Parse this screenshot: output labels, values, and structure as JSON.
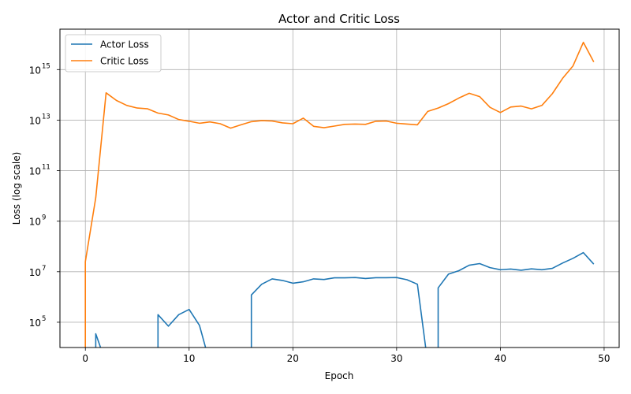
{
  "chart_data": {
    "type": "line",
    "title": "Actor and Critic Loss",
    "xlabel": "Epoch",
    "ylabel": "Loss (log scale)",
    "yscale": "log",
    "xlim": [
      -2.45,
      51.45
    ],
    "ylim_exponent": [
      4.0,
      16.6
    ],
    "grid": true,
    "legend_position": "top-left",
    "x_ticks": [
      0,
      10,
      20,
      30,
      40,
      50
    ],
    "y_ticks": [
      5,
      7,
      9,
      11,
      13,
      15
    ],
    "x_tick_labels": [
      "0",
      "10",
      "20",
      "30",
      "40",
      "50"
    ],
    "y_tick_labels": [
      "10",
      "10",
      "10",
      "10",
      "10",
      "10"
    ],
    "y_tick_exponents": [
      "5",
      "7",
      "9",
      "11",
      "13",
      "15"
    ],
    "x": [
      0,
      1,
      2,
      3,
      4,
      5,
      6,
      7,
      8,
      9,
      10,
      11,
      12,
      13,
      14,
      15,
      16,
      17,
      18,
      19,
      20,
      21,
      22,
      23,
      24,
      25,
      26,
      27,
      28,
      29,
      30,
      31,
      32,
      33,
      34,
      35,
      36,
      37,
      38,
      39,
      40,
      41,
      42,
      43,
      44,
      45,
      46,
      47,
      48,
      49
    ],
    "series": [
      {
        "name": "Actor Loss",
        "color": "#1f77b4",
        "values": [
          null,
          35000,
          null,
          null,
          null,
          null,
          null,
          200000,
          70000,
          200000,
          320000,
          75000,
          null,
          null,
          null,
          null,
          1200000,
          3200000,
          5200000,
          4500000,
          3500000,
          4000000,
          5200000,
          4900000,
          5700000,
          5700000,
          5900000,
          5400000,
          5800000,
          5800000,
          5900000,
          4800000,
          3200000,
          null,
          2300000,
          8000000,
          11000000,
          18000000,
          21000000,
          14500000,
          12000000,
          12800000,
          11500000,
          13000000,
          12000000,
          13500000,
          22000000,
          34000000,
          57000000,
          20000000
        ]
      },
      {
        "name": "Critic Loss",
        "color": "#ff7f0e",
        "values": [
          25000000.0,
          8500000000.0,
          120000000000000.0,
          60000000000000.0,
          38000000000000.0,
          30000000000000.0,
          28000000000000.0,
          19000000000000.0,
          16000000000000.0,
          10500000000000.0,
          9000000000000.0,
          7500000000000.0,
          8500000000000.0,
          7200000000000.0,
          4800000000000.0,
          6500000000000.0,
          8700000000000.0,
          9500000000000.0,
          9200000000000.0,
          7800000000000.0,
          7200000000000.0,
          12000000000000.0,
          5700000000000.0,
          5000000000000.0,
          5800000000000.0,
          6800000000000.0,
          7000000000000.0,
          6800000000000.0,
          9000000000000.0,
          9200000000000.0,
          7500000000000.0,
          7000000000000.0,
          6500000000000.0,
          22000000000000.0,
          30000000000000.0,
          45000000000000.0,
          75000000000000.0,
          115000000000000.0,
          85000000000000.0,
          32000000000000.0,
          20000000000000.0,
          33000000000000.0,
          36000000000000.0,
          28000000000000.0,
          38000000000000.0,
          110000000000000.0,
          450000000000000.0,
          1400000000000000.0,
          1.2e+16,
          2000000000000000.0
        ]
      }
    ]
  }
}
